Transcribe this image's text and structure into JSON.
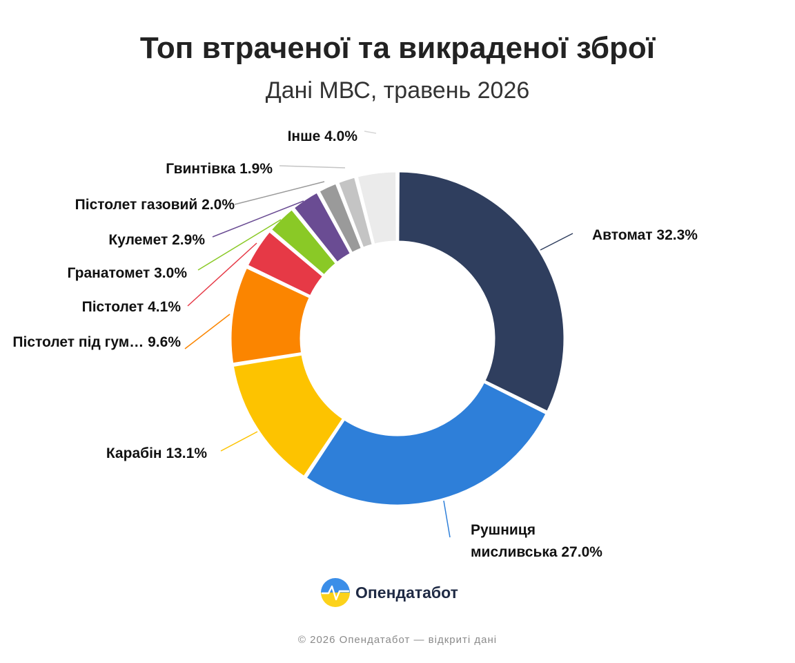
{
  "chart_data": {
    "type": "pie",
    "title": "Топ втраченої та викраденої зброї",
    "subtitle": "Дані МВС, травень 2026",
    "slices": [
      {
        "label": "Автомат",
        "label_lines": [
          "Автомат 32.3%"
        ],
        "value": 32.3,
        "color": "#2f3e5e"
      },
      {
        "label": "Рушниця мисливська",
        "label_lines": [
          "Рушниця",
          "мисливська 27.0%"
        ],
        "value": 27.0,
        "color": "#2e7fd9"
      },
      {
        "label": "Карабін",
        "label_lines": [
          "Карабін 13.1%"
        ],
        "value": 13.1,
        "color": "#fdc300"
      },
      {
        "label": "Пістолет під гум…",
        "label_lines": [
          "Пістолет під гум…  9.6%"
        ],
        "value": 9.6,
        "color": "#fb8500"
      },
      {
        "label": "Пістолет",
        "label_lines": [
          "Пістолет 4.1%"
        ],
        "value": 4.1,
        "color": "#e63946"
      },
      {
        "label": "Гранатомет",
        "label_lines": [
          "Гранатомет 3.0%"
        ],
        "value": 3.0,
        "color": "#8ac926"
      },
      {
        "label": "Кулемет",
        "label_lines": [
          "Кулемет 2.9%"
        ],
        "value": 2.9,
        "color": "#6a4c93"
      },
      {
        "label": "Пістолет газовий",
        "label_lines": [
          "Пістолет газовий 2.0%"
        ],
        "value": 2.0,
        "color": "#9a9a9a"
      },
      {
        "label": "Гвинтівка",
        "label_lines": [
          "Гвинтівка 1.9%"
        ],
        "value": 1.9,
        "color": "#c4c4c4"
      },
      {
        "label": "Інше",
        "label_lines": [
          "Інше 4.0%"
        ],
        "value": 4.0,
        "color": "#ebebeb"
      }
    ]
  },
  "brand": {
    "name": "Опендатабот",
    "logo_icon": "opendatabot-logo-icon"
  },
  "footer": {
    "text": "© 2026 Опендатабот — відкриті дані"
  }
}
